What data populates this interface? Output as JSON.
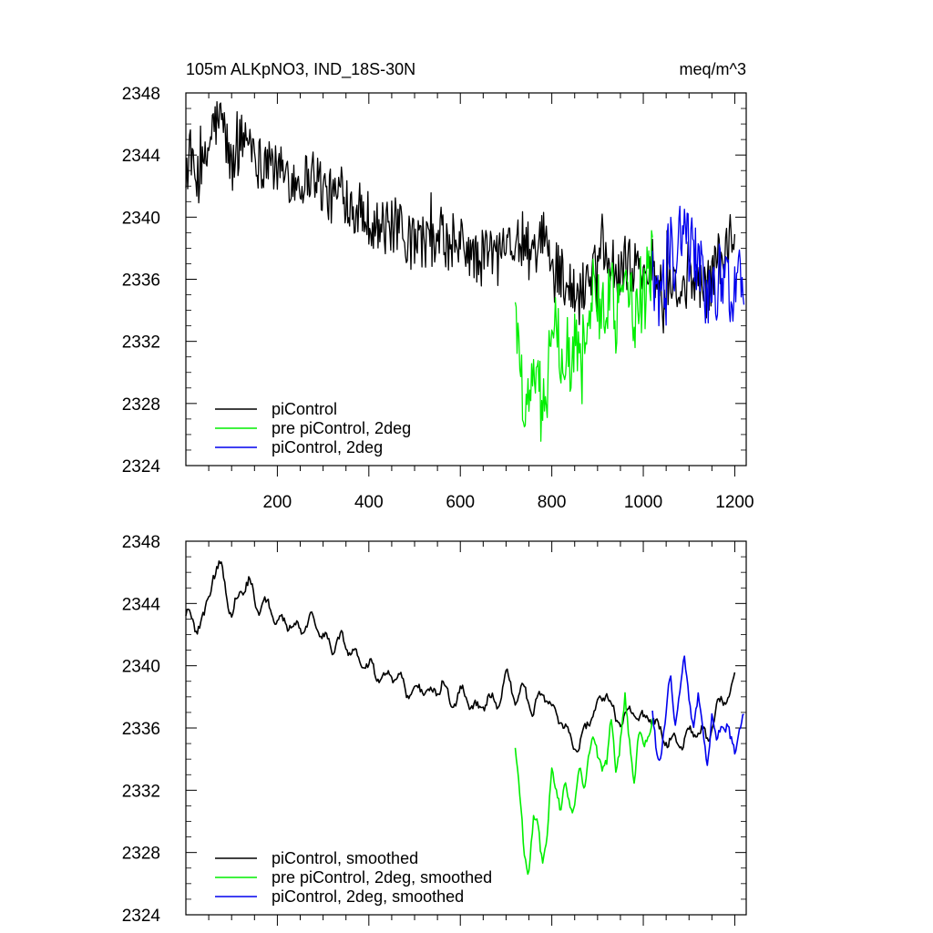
{
  "chart_data": [
    {
      "type": "line",
      "title_left": "105m ALKpNO3, IND_18S-30N",
      "title_right": "meq/m^3",
      "xlabel": "",
      "ylabel": "",
      "xlim": [
        0,
        1225
      ],
      "ylim": [
        2324,
        2348
      ],
      "x_ticks": [
        200,
        400,
        600,
        800,
        1000,
        1200
      ],
      "x_tick_labels": [
        "200",
        "400",
        "600",
        "800",
        "1000",
        "1200"
      ],
      "y_ticks": [
        2324,
        2328,
        2332,
        2336,
        2340,
        2344,
        2348
      ],
      "y_tick_labels": [
        "2324",
        "2328",
        "2332",
        "2336",
        "2340",
        "2344",
        "2348"
      ],
      "legend_position": "bottom-left",
      "series": [
        {
          "name": "piControl",
          "color": "#000000",
          "x": [
            0,
            20,
            40,
            60,
            80,
            100,
            120,
            140,
            160,
            180,
            200,
            220,
            240,
            260,
            280,
            300,
            320,
            340,
            360,
            380,
            400,
            420,
            440,
            460,
            480,
            500,
            520,
            540,
            560,
            580,
            600,
            620,
            640,
            660,
            680,
            700,
            720,
            740,
            760,
            780,
            800,
            820,
            840,
            860,
            880,
            900,
            920,
            940,
            960,
            980,
            1000,
            1020,
            1040,
            1060,
            1080,
            1100,
            1120,
            1140,
            1160,
            1180,
            1200
          ],
          "values": [
            2343.4,
            2342.5,
            2343.0,
            2346.0,
            2346.2,
            2343.0,
            2345.0,
            2345.2,
            2343.5,
            2344.0,
            2342.8,
            2342.9,
            2342.3,
            2342.5,
            2343.0,
            2341.8,
            2341.2,
            2341.7,
            2341.0,
            2340.3,
            2340.0,
            2339.4,
            2339.2,
            2339.5,
            2338.4,
            2338.3,
            2338.6,
            2338.0,
            2339.0,
            2337.5,
            2338.3,
            2337.8,
            2337.0,
            2338.0,
            2337.4,
            2339.5,
            2337.9,
            2338.5,
            2337.0,
            2338.5,
            2337.2,
            2336.6,
            2335.3,
            2334.7,
            2336.5,
            2337.3,
            2338.4,
            2336.4,
            2336.8,
            2337.0,
            2336.5,
            2336.8,
            2335.4,
            2335.2,
            2335.0,
            2335.6,
            2336.0,
            2335.2,
            2337.3,
            2337.8,
            2339.0
          ]
        },
        {
          "name": "pre piControl, 2deg",
          "color": "#00ee00",
          "x": [
            720,
            730,
            740,
            750,
            760,
            770,
            780,
            790,
            800,
            810,
            820,
            830,
            840,
            850,
            860,
            870,
            880,
            890,
            900,
            910,
            920,
            930,
            940,
            950,
            960,
            970,
            980,
            990,
            1000,
            1010,
            1020
          ],
          "values": [
            2335.0,
            2331.0,
            2328.0,
            2327.2,
            2329.8,
            2329.5,
            2327.8,
            2329.0,
            2333.0,
            2332.5,
            2331.0,
            2332.0,
            2331.0,
            2331.5,
            2333.0,
            2332.0,
            2334.5,
            2335.2,
            2334.0,
            2333.8,
            2334.0,
            2336.0,
            2333.5,
            2335.5,
            2337.5,
            2335.0,
            2333.0,
            2335.5,
            2334.5,
            2336.0,
            2336.5
          ]
        },
        {
          "name": "piControl, 2deg",
          "color": "#0000ee",
          "x": [
            1020,
            1030,
            1040,
            1050,
            1060,
            1070,
            1080,
            1090,
            1100,
            1110,
            1120,
            1130,
            1140,
            1150,
            1160,
            1170,
            1180,
            1190,
            1200,
            1210,
            1220
          ],
          "values": [
            2336.5,
            2334.0,
            2335.0,
            2337.0,
            2339.0,
            2336.5,
            2338.5,
            2340.0,
            2338.0,
            2336.5,
            2337.5,
            2336.0,
            2334.0,
            2336.5,
            2335.0,
            2336.5,
            2336.0,
            2335.0,
            2334.8,
            2336.0,
            2336.3
          ]
        }
      ]
    },
    {
      "type": "line",
      "xlabel": "",
      "ylabel": "",
      "xlim": [
        0,
        1225
      ],
      "ylim": [
        2324,
        2348
      ],
      "y_ticks": [
        2324,
        2328,
        2332,
        2336,
        2340,
        2344,
        2348
      ],
      "y_tick_labels": [
        "2324",
        "2328",
        "2332",
        "2336",
        "2340",
        "2344",
        "2348"
      ],
      "legend_position": "bottom-left",
      "series": [
        {
          "name": "piControl, smoothed",
          "color": "#000000",
          "x": [
            0,
            20,
            40,
            60,
            80,
            100,
            120,
            140,
            160,
            180,
            200,
            220,
            240,
            260,
            280,
            300,
            320,
            340,
            360,
            380,
            400,
            420,
            440,
            460,
            480,
            500,
            520,
            540,
            560,
            580,
            600,
            620,
            640,
            660,
            680,
            700,
            720,
            740,
            760,
            780,
            800,
            820,
            840,
            860,
            880,
            900,
            920,
            940,
            960,
            980,
            1000,
            1020,
            1040,
            1060,
            1080,
            1100,
            1120,
            1140,
            1160,
            1180,
            1200
          ],
          "values": [
            2343.4,
            2342.5,
            2343.0,
            2346.0,
            2346.2,
            2343.0,
            2345.0,
            2345.2,
            2343.5,
            2344.0,
            2342.8,
            2342.9,
            2342.3,
            2342.5,
            2343.0,
            2341.8,
            2341.2,
            2341.7,
            2341.0,
            2340.3,
            2340.0,
            2339.4,
            2339.2,
            2339.5,
            2338.4,
            2338.3,
            2338.6,
            2338.0,
            2339.0,
            2337.5,
            2338.3,
            2337.8,
            2337.0,
            2338.0,
            2337.4,
            2339.5,
            2337.9,
            2338.5,
            2337.0,
            2338.5,
            2337.2,
            2336.6,
            2335.3,
            2334.7,
            2336.5,
            2337.3,
            2338.4,
            2336.4,
            2336.8,
            2337.0,
            2336.5,
            2336.8,
            2335.4,
            2335.2,
            2335.0,
            2335.6,
            2336.0,
            2335.2,
            2337.3,
            2337.8,
            2339.0
          ]
        },
        {
          "name": "pre piControl, 2deg, smoothed",
          "color": "#00ee00",
          "x": [
            720,
            730,
            740,
            750,
            760,
            770,
            780,
            790,
            800,
            810,
            820,
            830,
            840,
            850,
            860,
            870,
            880,
            890,
            900,
            910,
            920,
            930,
            940,
            950,
            960,
            970,
            980,
            990,
            1000,
            1010,
            1020
          ],
          "values": [
            2335.0,
            2331.0,
            2328.0,
            2327.2,
            2329.8,
            2329.5,
            2327.8,
            2329.0,
            2333.0,
            2332.5,
            2331.0,
            2332.0,
            2331.0,
            2331.5,
            2333.0,
            2332.0,
            2334.5,
            2335.2,
            2334.0,
            2333.8,
            2334.0,
            2336.0,
            2333.5,
            2335.5,
            2337.5,
            2335.0,
            2333.0,
            2335.5,
            2334.5,
            2336.0,
            2336.5
          ]
        },
        {
          "name": "piControl, 2deg, smoothed",
          "color": "#0000ee",
          "x": [
            1020,
            1030,
            1040,
            1050,
            1060,
            1070,
            1080,
            1090,
            1100,
            1110,
            1120,
            1130,
            1140,
            1150,
            1160,
            1170,
            1180,
            1190,
            1200,
            1210,
            1220
          ],
          "values": [
            2336.5,
            2334.0,
            2335.0,
            2337.0,
            2339.0,
            2336.5,
            2338.5,
            2340.0,
            2338.0,
            2336.5,
            2337.5,
            2336.0,
            2334.0,
            2336.5,
            2335.0,
            2336.5,
            2336.0,
            2335.0,
            2334.8,
            2336.0,
            2336.3
          ]
        }
      ]
    }
  ]
}
